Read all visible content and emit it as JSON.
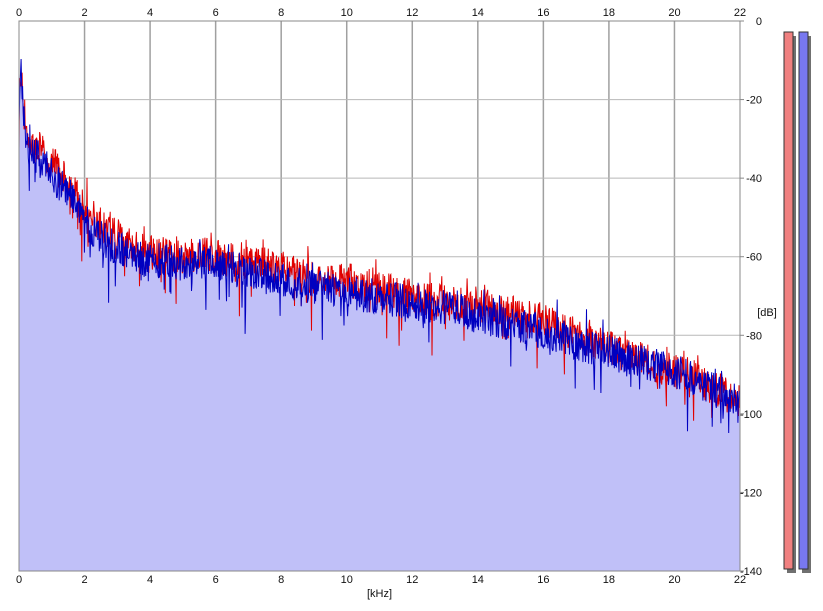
{
  "chart_data": {
    "type": "area",
    "xlabel": "[kHz]",
    "ylabel": "[dB]",
    "xlim": [
      0,
      22
    ],
    "ylim": [
      -140,
      0
    ],
    "x_ticks": [
      0,
      2,
      4,
      6,
      8,
      10,
      12,
      14,
      16,
      18,
      20,
      22
    ],
    "y_ticks": [
      0,
      -20,
      -40,
      -60,
      -80,
      -100,
      -120,
      -140
    ],
    "x_tick_labels": [
      "0",
      "2",
      "4",
      "6",
      "8",
      "10",
      "12",
      "14",
      "16",
      "18",
      "20",
      "22"
    ],
    "y_tick_labels": [
      "0",
      "-20",
      "-40",
      "-60",
      "-80",
      "-100",
      "-120",
      "-140"
    ],
    "grid": true,
    "x_ticks_on_top_and_bottom": true,
    "fill_color": "#c0c0f8",
    "series": [
      {
        "color": "#e00000",
        "x": [
          0,
          0.05,
          0.1,
          0.2,
          0.3,
          0.5,
          0.7,
          1.0,
          1.3,
          1.6,
          2.0,
          2.5,
          3.0,
          3.5,
          4.0,
          4.5,
          5.0,
          5.5,
          6.0,
          6.5,
          7.0,
          7.5,
          8.0,
          8.5,
          9.0,
          9.5,
          10.0,
          10.5,
          11.0,
          11.5,
          12.0,
          12.5,
          13.0,
          13.5,
          14.0,
          14.5,
          15.0,
          15.5,
          16.0,
          16.5,
          17.0,
          17.5,
          18.0,
          18.5,
          19.0,
          19.5,
          20.0,
          20.5,
          21.0,
          21.5,
          22.0
        ],
        "y": [
          -22,
          -11,
          -18,
          -27,
          -33,
          -32,
          -33,
          -36,
          -39,
          -42,
          -48,
          -52,
          -55,
          -58,
          -59,
          -59,
          -60,
          -59,
          -60,
          -61,
          -62,
          -62,
          -63,
          -64,
          -65,
          -66,
          -66,
          -67,
          -68,
          -69,
          -70,
          -71,
          -71,
          -72,
          -72,
          -73,
          -74,
          -75,
          -76,
          -78,
          -80,
          -82,
          -83,
          -85,
          -86,
          -88,
          -89,
          -90,
          -93,
          -95,
          -97
        ]
      },
      {
        "color": "#0000c0",
        "x": [
          0,
          0.05,
          0.1,
          0.2,
          0.3,
          0.5,
          0.7,
          1.0,
          1.3,
          1.6,
          2.0,
          2.5,
          3.0,
          3.5,
          4.0,
          4.5,
          5.0,
          5.5,
          6.0,
          6.5,
          7.0,
          7.5,
          8.0,
          8.5,
          9.0,
          9.5,
          10.0,
          10.5,
          11.0,
          11.5,
          12.0,
          12.5,
          13.0,
          13.5,
          14.0,
          14.5,
          15.0,
          15.5,
          16.0,
          16.5,
          17.0,
          17.5,
          18.0,
          18.5,
          19.0,
          19.5,
          20.0,
          20.5,
          21.0,
          21.5,
          22.0
        ],
        "y": [
          -24,
          -12,
          -20,
          -29,
          -35,
          -34,
          -36,
          -39,
          -42,
          -44,
          -51,
          -55,
          -58,
          -60,
          -61,
          -61,
          -62,
          -61,
          -62,
          -63,
          -64,
          -65,
          -66,
          -67,
          -68,
          -68,
          -69,
          -70,
          -70,
          -71,
          -72,
          -73,
          -73,
          -74,
          -75,
          -76,
          -77,
          -78,
          -79,
          -80,
          -82,
          -83,
          -84,
          -86,
          -87,
          -88,
          -89,
          -91,
          -93,
          -95,
          -96
        ]
      }
    ]
  },
  "meters": [
    {
      "color": "#f08080"
    },
    {
      "color": "#7878f0"
    }
  ]
}
